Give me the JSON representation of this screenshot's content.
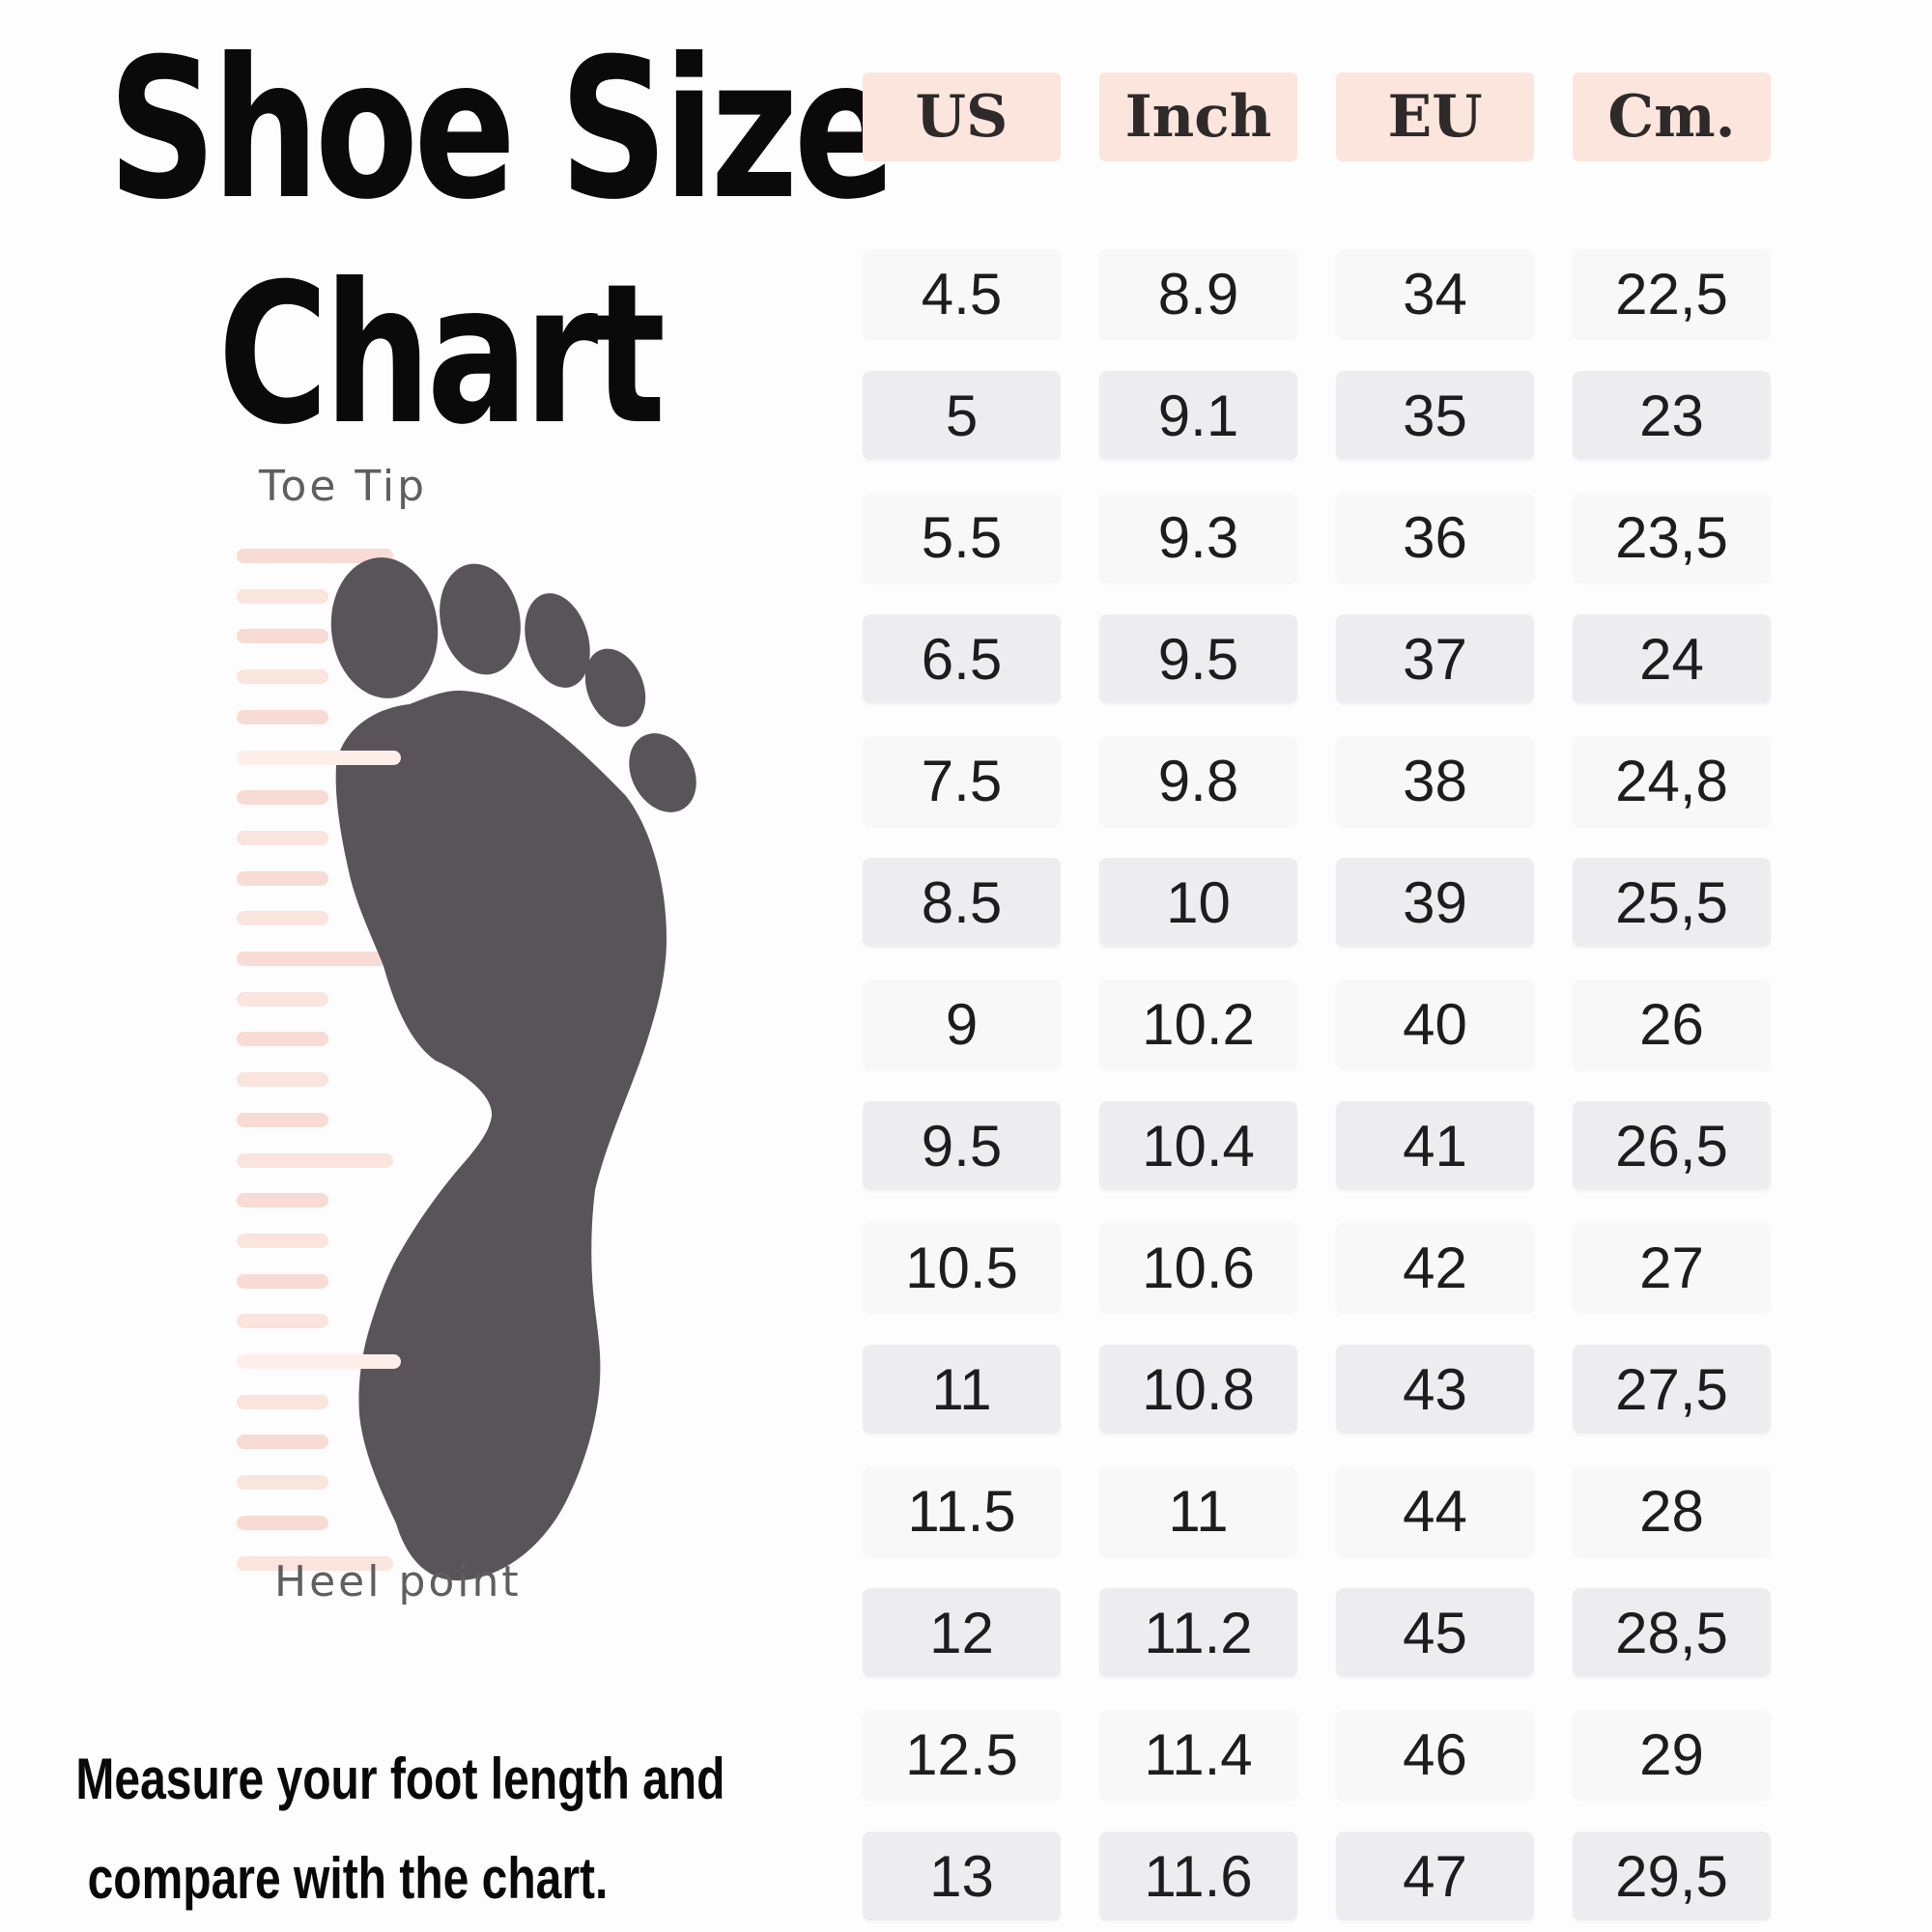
{
  "title": {
    "line1": "Shoe Size",
    "line2": "Chart"
  },
  "table": {
    "headers": [
      "US",
      "Inch",
      "EU",
      "Cm."
    ],
    "rows": [
      [
        "4.5",
        "8.9",
        "34",
        "22,5"
      ],
      [
        "5",
        "9.1",
        "35",
        "23"
      ],
      [
        "5.5",
        "9.3",
        "36",
        "23,5"
      ],
      [
        "6.5",
        "9.5",
        "37",
        "24"
      ],
      [
        "7.5",
        "9.8",
        "38",
        "24,8"
      ],
      [
        "8.5",
        "10",
        "39",
        "25,5"
      ],
      [
        "9",
        "10.2",
        "40",
        "26"
      ],
      [
        "9.5",
        "10.4",
        "41",
        "26,5"
      ],
      [
        "10.5",
        "10.6",
        "42",
        "27"
      ],
      [
        "11",
        "10.8",
        "43",
        "27,5"
      ],
      [
        "11.5",
        "11",
        "44",
        "28"
      ],
      [
        "12",
        "11.2",
        "45",
        "28,5"
      ],
      [
        "12.5",
        "11.4",
        "46",
        "29"
      ],
      [
        "13",
        "11.6",
        "47",
        "29,5"
      ]
    ]
  },
  "diagram": {
    "toe_tip_label": "Toe Tip",
    "heel_point_label": "Heel point"
  },
  "footer": {
    "line1": "Measure your foot length and",
    "line2": "compare with the chart."
  },
  "colors": {
    "header_bg": "#fbe5dc",
    "row_light": "#f8f8f9",
    "row_dark": "#ededf0",
    "foot_gray": "#595459",
    "tick_pink": "#f8dbd4",
    "tick_pink_alt": "#fae4de",
    "anchor_pink": "#fdeeea",
    "label_gray": "#5f5f5f",
    "text_dark": "#1d1d1d"
  },
  "chart_data": {
    "type": "table",
    "title": "Shoe Size Chart",
    "columns": [
      "US",
      "Inch",
      "EU",
      "Cm."
    ],
    "rows": [
      [
        "4.5",
        "8.9",
        "34",
        "22,5"
      ],
      [
        "5",
        "9.1",
        "35",
        "23"
      ],
      [
        "5.5",
        "9.3",
        "36",
        "23,5"
      ],
      [
        "6.5",
        "9.5",
        "37",
        "24"
      ],
      [
        "7.5",
        "9.8",
        "38",
        "24,8"
      ],
      [
        "8.5",
        "10",
        "39",
        "25,5"
      ],
      [
        "9",
        "10.2",
        "40",
        "26"
      ],
      [
        "9.5",
        "10.4",
        "41",
        "26,5"
      ],
      [
        "10.5",
        "10.6",
        "42",
        "27"
      ],
      [
        "11",
        "10.8",
        "43",
        "27,5"
      ],
      [
        "11.5",
        "11",
        "44",
        "28"
      ],
      [
        "12",
        "11.2",
        "45",
        "28,5"
      ],
      [
        "12.5",
        "11.4",
        "46",
        "29"
      ],
      [
        "13",
        "11.6",
        "47",
        "29,5"
      ]
    ],
    "annotations": [
      "Toe Tip",
      "Heel point",
      "Measure your foot length and compare with the chart."
    ]
  }
}
